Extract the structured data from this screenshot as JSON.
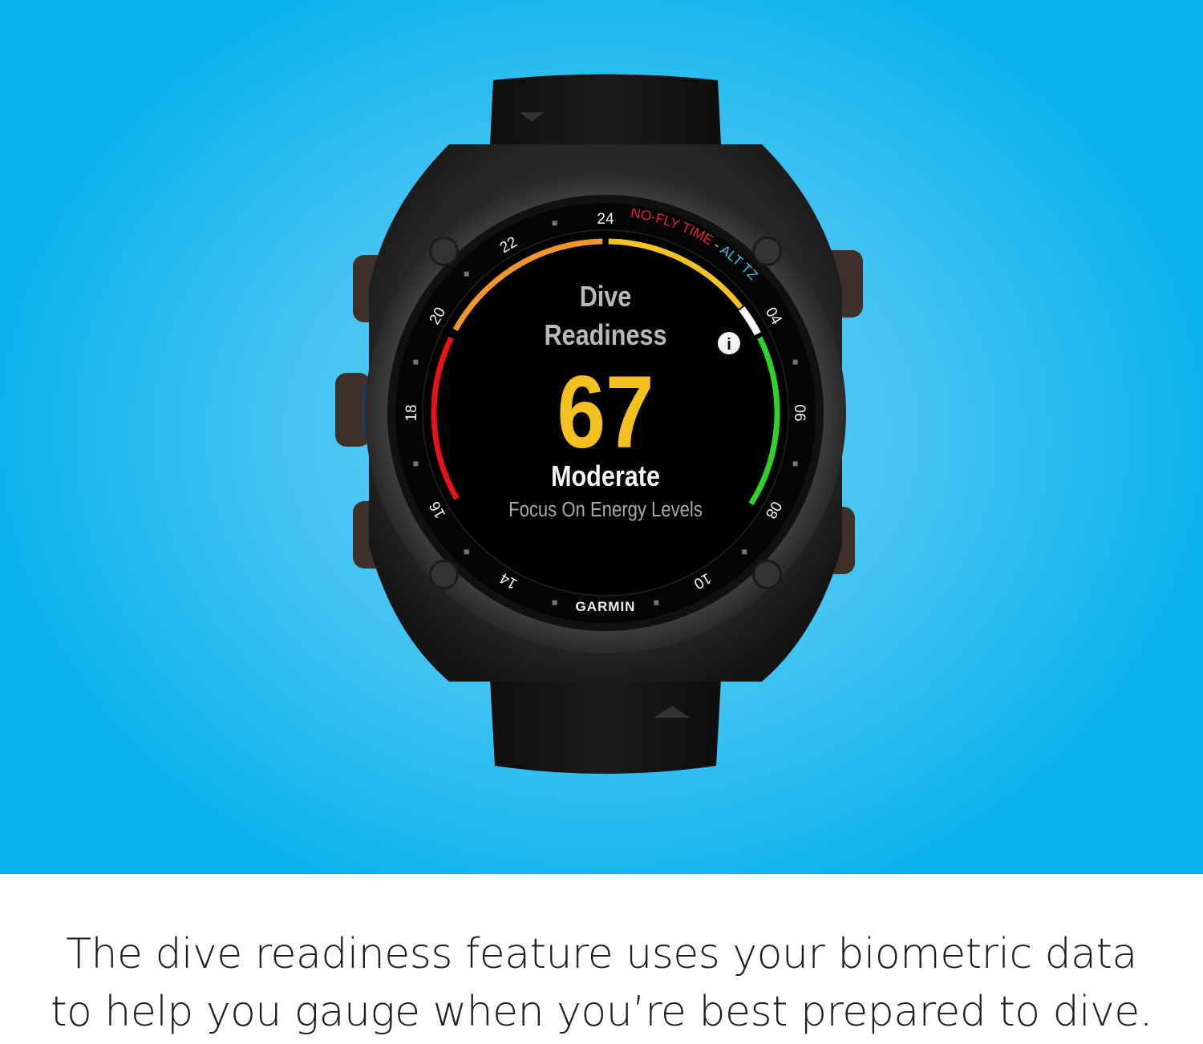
{
  "watch": {
    "brand": "GARMIN",
    "screen": {
      "title_line1": "Dive",
      "title_line2": "Readiness",
      "score": 67,
      "status": "Moderate",
      "advice": "Focus On Energy Levels",
      "info_icon": "info-icon"
    },
    "bezel": {
      "hour_labels": [
        "24",
        "04",
        "06",
        "08",
        "10",
        "14",
        "16",
        "18",
        "20",
        "22"
      ],
      "no_fly_label": "NO-FLY TIME",
      "separator": "-",
      "alt_tz_label": "ALT TZ"
    },
    "colors": {
      "score": "#f2c01f",
      "no_fly": "#e8243a",
      "alt_tz": "#3ec3e6",
      "gauge_red": "#e3141b",
      "gauge_orange": "#f0962a",
      "gauge_yellow": "#f3c324",
      "gauge_green": "#2fd22a"
    }
  },
  "caption": {
    "line1": "The dive readiness feature uses your biometric data",
    "line2": "to help you gauge when you’re best prepared to dive."
  }
}
